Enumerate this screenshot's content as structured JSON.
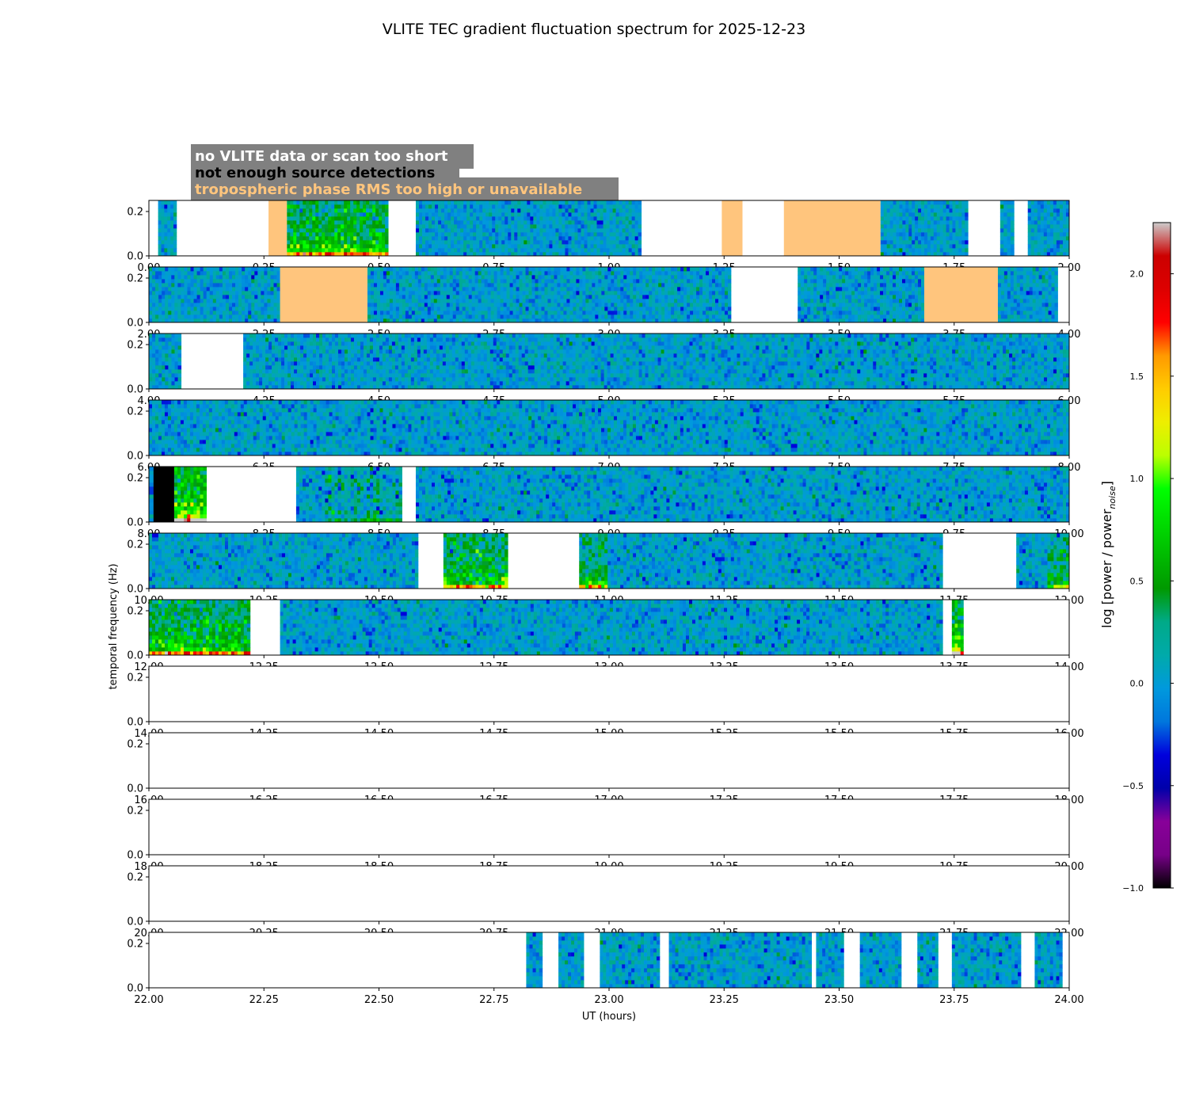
{
  "chart_data": {
    "type": "heatmap",
    "title": "VLITE TEC gradient fluctuation spectrum for 2025-12-23",
    "xlabel": "UT (hours)",
    "ylabel": "temporal frequency (Hz)",
    "colorbar_label": "log [power / power_noise]",
    "colorbar_label_main": "log [power / power",
    "colorbar_label_sub": "noise",
    "colorbar_label_end": "]",
    "colorbar_range": [
      -1.0,
      2.25
    ],
    "colorbar_ticks": [
      "−1.0",
      "−0.5",
      "0.0",
      "0.5",
      "1.0",
      "1.5",
      "2.0"
    ],
    "colorbar_tick_values": [
      -1.0,
      -0.5,
      0.0,
      0.5,
      1.0,
      1.5,
      2.0
    ],
    "colormap": "nipy_spectral",
    "ylim": [
      0.0,
      0.25
    ],
    "ytick_values": [
      0.0,
      0.2
    ],
    "ytick_labels": [
      "0.0",
      "0.2"
    ],
    "legend": [
      {
        "label": "no VLITE data or scan too short",
        "color": "#ffffff"
      },
      {
        "label": "not enough source detections",
        "color": "#000000"
      },
      {
        "label": "tropospheric phase RMS too high or unavailable",
        "color": "#ffc57d"
      }
    ],
    "legend_box_color": "#808080",
    "flag_colors": {
      "nodata": "#ffffff",
      "nodet": "#000000",
      "trop": "#ffc57d"
    },
    "panels": [
      {
        "xlim": [
          0,
          2
        ],
        "xtick_labels": [
          "0.00",
          "0.25",
          "0.50",
          "0.75",
          "1.00",
          "1.25",
          "1.50",
          "1.75",
          "2.00"
        ],
        "data": [
          [
            0.02,
            0.06
          ],
          [
            0.26,
            0.3
          ],
          [
            0.3,
            0.52
          ],
          [
            0.58,
            1.07
          ],
          [
            1.245,
            1.29
          ],
          [
            1.38,
            1.59
          ],
          [
            1.59,
            1.78
          ],
          [
            1.85,
            1.88
          ],
          [
            1.91,
            2.0
          ]
        ],
        "flags": [
          [
            0.26,
            0.3,
            "trop"
          ],
          [
            1.245,
            1.29,
            "trop"
          ],
          [
            1.38,
            1.59,
            "trop"
          ]
        ],
        "activity": [
          [
            0.3,
            0.52,
            0.9
          ]
        ]
      },
      {
        "xlim": [
          2,
          4
        ],
        "xtick_labels": [
          "2.00",
          "2.25",
          "2.50",
          "2.75",
          "3.00",
          "3.25",
          "3.50",
          "3.75",
          "4.00"
        ],
        "data": [
          [
            2.0,
            2.285
          ],
          [
            2.285,
            2.475
          ],
          [
            2.475,
            3.265
          ],
          [
            3.41,
            3.685
          ],
          [
            3.685,
            3.845
          ],
          [
            3.845,
            3.975
          ]
        ],
        "flags": [
          [
            2.285,
            2.475,
            "trop"
          ],
          [
            3.685,
            3.845,
            "trop"
          ]
        ],
        "activity": []
      },
      {
        "xlim": [
          4,
          6
        ],
        "xtick_labels": [
          "4.00",
          "4.25",
          "4.50",
          "4.75",
          "5.00",
          "5.25",
          "5.50",
          "5.75",
          "6.00"
        ],
        "data": [
          [
            4.0,
            4.07
          ],
          [
            4.205,
            6.0
          ]
        ],
        "flags": [],
        "activity": []
      },
      {
        "xlim": [
          6,
          8
        ],
        "xtick_labels": [
          "6.00",
          "6.25",
          "6.50",
          "6.75",
          "7.00",
          "7.25",
          "7.50",
          "7.75",
          "8.00"
        ],
        "data": [
          [
            6.0,
            8.0
          ]
        ],
        "flags": [],
        "activity": []
      },
      {
        "xlim": [
          8,
          10
        ],
        "xtick_labels": [
          "8.00",
          "8.25",
          "8.50",
          "8.75",
          "9.00",
          "9.25",
          "9.50",
          "9.75",
          "10.00"
        ],
        "data": [
          [
            8.0,
            8.01
          ],
          [
            8.01,
            8.055
          ],
          [
            8.055,
            8.125
          ],
          [
            8.32,
            8.55
          ],
          [
            8.58,
            10.0
          ]
        ],
        "flags": [
          [
            8.01,
            8.055,
            "nodet"
          ]
        ],
        "activity": [
          [
            8.055,
            8.125,
            1.3
          ],
          [
            8.38,
            8.55,
            0.25
          ]
        ]
      },
      {
        "xlim": [
          10,
          12
        ],
        "xtick_labels": [
          "10.00",
          "10.25",
          "10.50",
          "10.75",
          "11.00",
          "11.25",
          "11.50",
          "11.75",
          "12.00"
        ],
        "data": [
          [
            10.0,
            10.585
          ],
          [
            10.64,
            10.78
          ],
          [
            10.935,
            11.725
          ],
          [
            11.885,
            12.0
          ]
        ],
        "flags": [],
        "activity": [
          [
            10.64,
            10.78,
            0.8
          ],
          [
            10.935,
            11.0,
            0.7
          ],
          [
            11.95,
            12.0,
            0.6
          ]
        ]
      },
      {
        "xlim": [
          12,
          14
        ],
        "xtick_labels": [
          "12.00",
          "12.25",
          "12.50",
          "12.75",
          "13.00",
          "13.25",
          "13.50",
          "13.75",
          "14.00"
        ],
        "data": [
          [
            12.0,
            12.22
          ],
          [
            12.285,
            13.725
          ],
          [
            13.745,
            13.77
          ]
        ],
        "flags": [],
        "activity": [
          [
            12.0,
            12.22,
            0.9
          ],
          [
            13.745,
            13.77,
            1.3
          ]
        ]
      },
      {
        "xlim": [
          14,
          16
        ],
        "xtick_labels": [
          "14.00",
          "14.25",
          "14.50",
          "14.75",
          "15.00",
          "15.25",
          "15.50",
          "15.75",
          "16.00"
        ],
        "data": [],
        "flags": [],
        "activity": []
      },
      {
        "xlim": [
          16,
          18
        ],
        "xtick_labels": [
          "16.00",
          "16.25",
          "16.50",
          "16.75",
          "17.00",
          "17.25",
          "17.50",
          "17.75",
          "18.00"
        ],
        "data": [],
        "flags": [],
        "activity": []
      },
      {
        "xlim": [
          18,
          20
        ],
        "xtick_labels": [
          "18.00",
          "18.25",
          "18.50",
          "18.75",
          "19.00",
          "19.25",
          "19.50",
          "19.75",
          "20.00"
        ],
        "data": [],
        "flags": [],
        "activity": []
      },
      {
        "xlim": [
          20,
          22
        ],
        "xtick_labels": [
          "20.00",
          "20.25",
          "20.50",
          "20.75",
          "21.00",
          "21.25",
          "21.50",
          "21.75",
          "22.00"
        ],
        "data": [],
        "flags": [],
        "activity": []
      },
      {
        "xlim": [
          22,
          24
        ],
        "xtick_labels": [
          "22.00",
          "22.25",
          "22.50",
          "22.75",
          "23.00",
          "23.25",
          "23.50",
          "23.75",
          "24.00"
        ],
        "data": [
          [
            22.82,
            22.855
          ],
          [
            22.89,
            22.945
          ],
          [
            22.98,
            23.11
          ],
          [
            23.13,
            23.44
          ],
          [
            23.45,
            23.51
          ],
          [
            23.545,
            23.635
          ],
          [
            23.67,
            23.715
          ],
          [
            23.745,
            23.895
          ],
          [
            23.925,
            23.985
          ]
        ],
        "flags": [],
        "activity": []
      }
    ]
  }
}
